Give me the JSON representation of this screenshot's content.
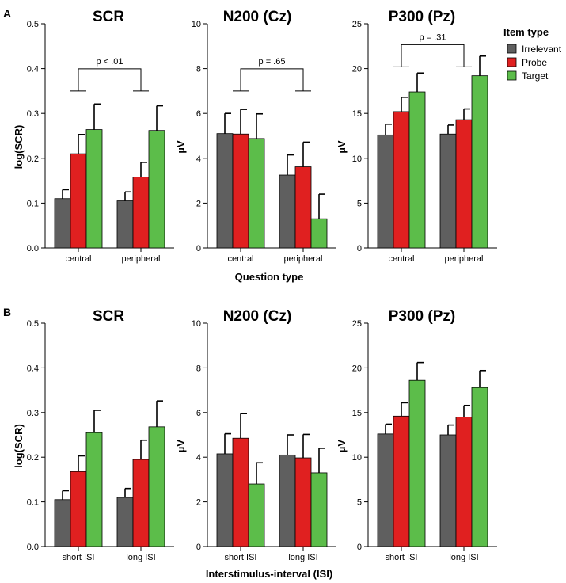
{
  "legend": {
    "title": "Item type",
    "items": [
      {
        "name": "Irrelevant",
        "color": "#5f5f5f"
      },
      {
        "name": "Probe",
        "color": "#e02020"
      },
      {
        "name": "Target",
        "color": "#5cbd4a"
      }
    ]
  },
  "rows": [
    {
      "letter": "A",
      "xtitle": "Question type"
    },
    {
      "letter": "B",
      "xtitle": "Interstimulus-interval (ISI)"
    }
  ],
  "chart_data": [
    {
      "type": "bar",
      "row": 0,
      "col": 0,
      "title": "SCR",
      "ylabel": "log(SCR)",
      "ylim": [
        0,
        0.5
      ],
      "yticks": [
        0.0,
        0.1,
        0.2,
        0.3,
        0.4,
        0.5
      ],
      "tick_decimals": 1,
      "categories": [
        "central",
        "peripheral"
      ],
      "series": [
        {
          "name": "Irrelevant",
          "values": [
            0.11,
            0.105
          ],
          "errors": [
            0.02,
            0.02
          ]
        },
        {
          "name": "Probe",
          "values": [
            0.21,
            0.158
          ],
          "errors": [
            0.043,
            0.033
          ]
        },
        {
          "name": "Target",
          "values": [
            0.264,
            0.262
          ],
          "errors": [
            0.057,
            0.055
          ]
        }
      ],
      "annotation": {
        "text": "p < .01",
        "y": 0.35
      }
    },
    {
      "type": "bar",
      "row": 0,
      "col": 1,
      "title": "N200 (Cz)",
      "ylabel": "µV",
      "ylim": [
        0,
        10
      ],
      "yticks": [
        0,
        2,
        4,
        6,
        8,
        10
      ],
      "tick_decimals": 0,
      "categories": [
        "central",
        "peripheral"
      ],
      "series": [
        {
          "name": "Irrelevant",
          "values": [
            5.1,
            3.25
          ],
          "errors": [
            0.9,
            0.9
          ]
        },
        {
          "name": "Probe",
          "values": [
            5.08,
            3.62
          ],
          "errors": [
            1.1,
            1.1
          ]
        },
        {
          "name": "Target",
          "values": [
            4.88,
            1.3
          ],
          "errors": [
            1.1,
            1.1
          ]
        }
      ],
      "annotation": {
        "text": "p = .65",
        "y": 7.0
      }
    },
    {
      "type": "bar",
      "row": 0,
      "col": 2,
      "title": "P300 (Pz)",
      "ylabel": "µV",
      "ylim": [
        0,
        25
      ],
      "yticks": [
        0,
        5,
        10,
        15,
        20,
        25
      ],
      "tick_decimals": 0,
      "categories": [
        "central",
        "peripheral"
      ],
      "series": [
        {
          "name": "Irrelevant",
          "values": [
            12.6,
            12.7
          ],
          "errors": [
            1.2,
            1.0
          ]
        },
        {
          "name": "Probe",
          "values": [
            15.2,
            14.3
          ],
          "errors": [
            1.6,
            1.2
          ]
        },
        {
          "name": "Target",
          "values": [
            17.4,
            19.2
          ],
          "errors": [
            2.1,
            2.2
          ]
        }
      ],
      "annotation": {
        "text": "p = .31",
        "y": 20.2
      }
    },
    {
      "type": "bar",
      "row": 1,
      "col": 0,
      "title": "SCR",
      "ylabel": "log(SCR)",
      "ylim": [
        0,
        0.5
      ],
      "yticks": [
        0.0,
        0.1,
        0.2,
        0.3,
        0.4,
        0.5
      ],
      "tick_decimals": 1,
      "categories": [
        "short ISI",
        "long ISI"
      ],
      "series": [
        {
          "name": "Irrelevant",
          "values": [
            0.105,
            0.11
          ],
          "errors": [
            0.02,
            0.02
          ]
        },
        {
          "name": "Probe",
          "values": [
            0.168,
            0.195
          ],
          "errors": [
            0.035,
            0.043
          ]
        },
        {
          "name": "Target",
          "values": [
            0.255,
            0.268
          ],
          "errors": [
            0.05,
            0.058
          ]
        }
      ]
    },
    {
      "type": "bar",
      "row": 1,
      "col": 1,
      "title": "N200 (Cz)",
      "ylabel": "µV",
      "ylim": [
        0,
        10
      ],
      "yticks": [
        0,
        2,
        4,
        6,
        8,
        10
      ],
      "tick_decimals": 0,
      "categories": [
        "short ISI",
        "long ISI"
      ],
      "series": [
        {
          "name": "Irrelevant",
          "values": [
            4.15,
            4.1
          ],
          "errors": [
            0.9,
            0.9
          ]
        },
        {
          "name": "Probe",
          "values": [
            4.85,
            3.97
          ],
          "errors": [
            1.1,
            1.05
          ]
        },
        {
          "name": "Target",
          "values": [
            2.8,
            3.3
          ],
          "errors": [
            0.95,
            1.1
          ]
        }
      ]
    },
    {
      "type": "bar",
      "row": 1,
      "col": 2,
      "title": "P300 (Pz)",
      "ylabel": "µV",
      "ylim": [
        0,
        25
      ],
      "yticks": [
        0,
        5,
        10,
        15,
        20,
        25
      ],
      "tick_decimals": 0,
      "categories": [
        "short ISI",
        "long ISI"
      ],
      "series": [
        {
          "name": "Irrelevant",
          "values": [
            12.6,
            12.5
          ],
          "errors": [
            1.1,
            1.1
          ]
        },
        {
          "name": "Probe",
          "values": [
            14.6,
            14.5
          ],
          "errors": [
            1.5,
            1.3
          ]
        },
        {
          "name": "Target",
          "values": [
            18.6,
            17.8
          ],
          "errors": [
            2.0,
            1.9
          ]
        }
      ]
    }
  ]
}
